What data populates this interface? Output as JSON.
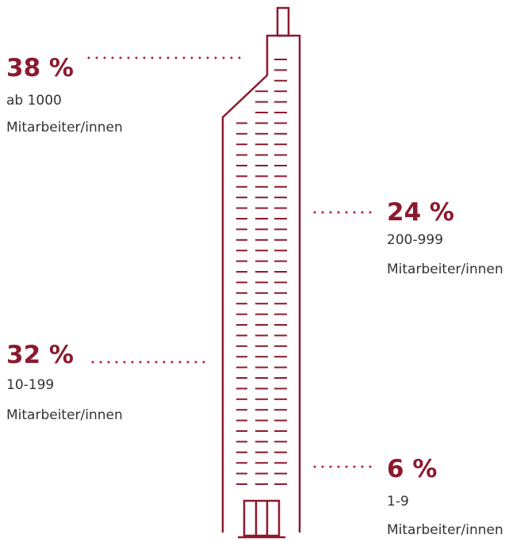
{
  "items": [
    {
      "percent": "38 %",
      "range": "ab 1000",
      "unit": "Mitarbeiter/innen"
    },
    {
      "percent": "24 %",
      "range": "200-999",
      "unit": "Mitarbeiter/innen"
    },
    {
      "percent": "32 %",
      "range": "10-199",
      "unit": "Mitarbeiter/innen"
    },
    {
      "percent": "6 %",
      "range": "1-9",
      "unit": "Mitarbeiter/innen"
    }
  ]
}
